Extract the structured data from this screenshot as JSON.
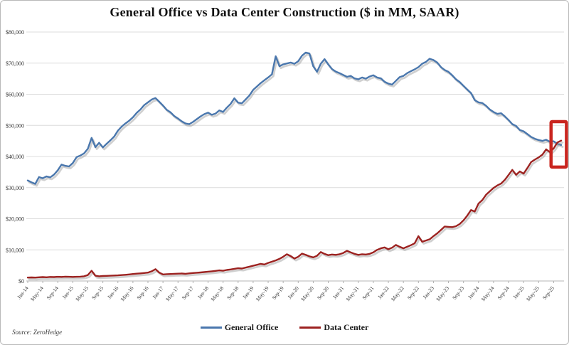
{
  "frame": {
    "source_note": "Source: ZeroHedge"
  },
  "chart_data": {
    "type": "line",
    "title": "General Office vs Data Center Construction ($ in MM, SAAR)",
    "frequency": "monthly",
    "x_start": "Jan-14",
    "x_end": "Nov-25",
    "xlabel": "",
    "ylabel": "",
    "ylim": [
      0,
      80000
    ],
    "y_tick_step": 10000,
    "y_tick_labels": [
      "$0",
      "$10,000",
      "$20,000",
      "$30,000",
      "$40,000",
      "$50,000",
      "$60,000",
      "$70,000",
      "$80,000"
    ],
    "grid": true,
    "legend_position": "bottom-center",
    "x_tick_every": 4,
    "x_tick_labels": [
      "Jan-14",
      "May-14",
      "Sep-14",
      "Jan-15",
      "May-15",
      "Sep-15",
      "Jan-16",
      "May-16",
      "Sep-16",
      "Jan-17",
      "May-17",
      "Sep-17",
      "Jan-18",
      "May-18",
      "Sep-18",
      "Jan-19",
      "May-19",
      "Sep-19",
      "Jan-20",
      "May-20",
      "Sep-20",
      "Jan-21",
      "May-21",
      "Sep-21",
      "Jan-22",
      "May-22",
      "Sep-22",
      "Jan-23",
      "May-23",
      "Sep-23",
      "Jan-24",
      "May-24",
      "Sep-24",
      "Jan-25",
      "May-25",
      "Sep-25"
    ],
    "series": [
      {
        "name": "General Office",
        "color": "#4a77ad",
        "values": [
          32300,
          31700,
          31200,
          33400,
          33000,
          33600,
          33300,
          34200,
          35600,
          37400,
          37000,
          36800,
          37900,
          39800,
          40300,
          41000,
          42500,
          46000,
          43000,
          44400,
          42900,
          44100,
          45200,
          46400,
          48300,
          49600,
          50600,
          51500,
          52600,
          54000,
          55100,
          56500,
          57400,
          58300,
          58800,
          57600,
          56400,
          55000,
          54200,
          53000,
          52200,
          51300,
          50600,
          50400,
          51100,
          52000,
          52900,
          53600,
          54100,
          53400,
          53800,
          54800,
          54300,
          55700,
          56900,
          58700,
          57300,
          57100,
          58300,
          59600,
          61400,
          62500,
          63600,
          64500,
          65400,
          66400,
          72200,
          69000,
          69600,
          69900,
          70200,
          69800,
          70600,
          72400,
          73400,
          73100,
          69000,
          67200,
          69800,
          71300,
          69600,
          68100,
          67300,
          66800,
          66200,
          65600,
          65900,
          65100,
          64800,
          65400,
          65000,
          65700,
          66100,
          65400,
          65100,
          64000,
          63400,
          63100,
          64300,
          65500,
          65900,
          66800,
          67400,
          68000,
          68700,
          69800,
          70400,
          71400,
          71000,
          70200,
          68700,
          67800,
          67200,
          66100,
          64800,
          63900,
          62700,
          61500,
          60400,
          58100,
          57400,
          57200,
          56300,
          55100,
          54300,
          53700,
          53900,
          52900,
          51700,
          50400,
          49800,
          48500,
          48100,
          47200,
          46300,
          45700,
          45300,
          45000,
          45400,
          44700,
          44900,
          44100,
          43700
        ]
      },
      {
        "name": "Data Center",
        "color": "#9c2220",
        "values": [
          1100,
          1150,
          1100,
          1200,
          1250,
          1200,
          1300,
          1250,
          1350,
          1300,
          1400,
          1350,
          1300,
          1350,
          1400,
          1500,
          1900,
          3300,
          1700,
          1500,
          1600,
          1650,
          1700,
          1750,
          1800,
          1900,
          2000,
          2100,
          2250,
          2350,
          2450,
          2550,
          2700,
          3100,
          3800,
          2700,
          2100,
          2200,
          2250,
          2300,
          2350,
          2400,
          2300,
          2450,
          2550,
          2650,
          2750,
          2850,
          3000,
          3100,
          3250,
          3400,
          3300,
          3550,
          3700,
          3900,
          4100,
          4000,
          4300,
          4600,
          4900,
          5200,
          5500,
          5300,
          5800,
          6200,
          6600,
          7100,
          7800,
          8600,
          8000,
          7200,
          7800,
          8800,
          8400,
          7900,
          7600,
          8100,
          9300,
          8700,
          8300,
          8500,
          8400,
          8600,
          9000,
          9700,
          9200,
          8700,
          8400,
          8600,
          8500,
          8700,
          9200,
          10000,
          10500,
          10800,
          10200,
          10700,
          11600,
          11000,
          10500,
          11000,
          11500,
          12100,
          14400,
          12600,
          13000,
          13400,
          14400,
          15300,
          16400,
          17500,
          17400,
          17300,
          17600,
          18300,
          19500,
          21000,
          22800,
          22300,
          24900,
          26000,
          27700,
          28800,
          29900,
          30700,
          31300,
          32500,
          34100,
          35700,
          34100,
          35200,
          34500,
          36300,
          38200,
          39000,
          39700,
          40600,
          42300,
          41400,
          42600,
          44500,
          45100
        ]
      }
    ],
    "annotation_box": {
      "label": "crossover-highlight",
      "color": "#c9251f",
      "x_from_index": 139.3,
      "x_to_index": 143.4,
      "y_from": 36600,
      "y_to": 51200
    }
  }
}
